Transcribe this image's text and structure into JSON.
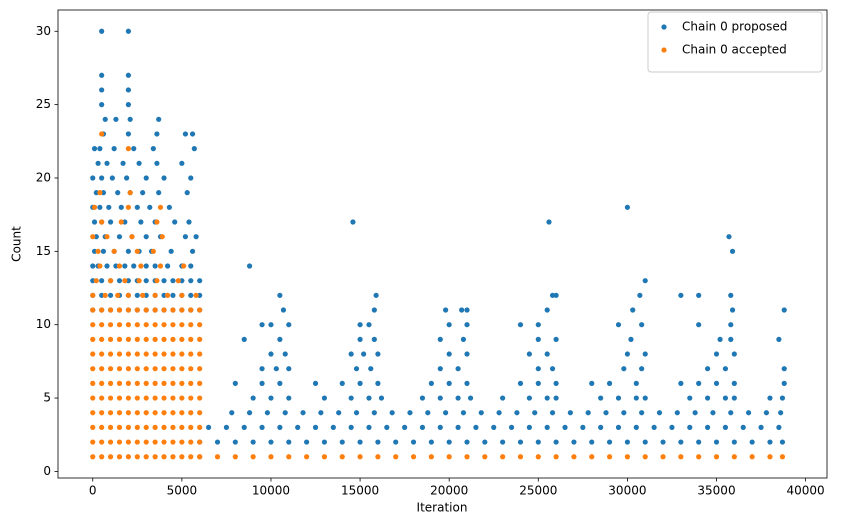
{
  "chart_data": {
    "type": "scatter",
    "xlabel": "Iteration",
    "ylabel": "Count",
    "legend": "upper right",
    "xlim": [
      -1950,
      41200
    ],
    "ylim": [
      -0.45,
      31.45
    ],
    "xticks": [
      0,
      5000,
      10000,
      15000,
      20000,
      25000,
      30000,
      35000,
      40000
    ],
    "yticks": [
      0,
      5,
      10,
      15,
      20,
      25,
      30
    ],
    "series": [
      {
        "name": "Chain 0 proposed",
        "color": "#1f77b4",
        "x": [
          0,
          500,
          1000,
          1500,
          2000,
          2500,
          3000,
          3500,
          4000,
          4500,
          5000,
          5500,
          6000,
          0,
          500,
          1000,
          1500,
          2000,
          2500,
          3000,
          3500,
          4000,
          4500,
          5000,
          5500,
          6000,
          0,
          500,
          1000,
          1500,
          2000,
          2500,
          3000,
          3500,
          4000,
          4500,
          5000,
          5500,
          6000,
          0,
          300,
          800,
          1300,
          1800,
          2300,
          3000,
          3500,
          4200,
          5000,
          5500,
          100,
          600,
          1200,
          2000,
          2600,
          3300,
          4400,
          5600,
          200,
          700,
          1500,
          2200,
          3000,
          3800,
          5200,
          5800,
          100,
          500,
          1000,
          1800,
          2700,
          3500,
          4600,
          5400,
          0,
          400,
          900,
          1600,
          2500,
          3200,
          4300,
          200,
          600,
          1400,
          2100,
          2800,
          3700,
          5300,
          0,
          500,
          1100,
          1900,
          3000,
          4000,
          5500,
          300,
          800,
          1700,
          2600,
          3600,
          5000,
          100,
          400,
          1200,
          2300,
          3400,
          5700,
          600,
          2000,
          3600,
          5200,
          5600,
          700,
          1300,
          2100,
          3700,
          500,
          2000,
          500,
          2000,
          500,
          2000,
          500,
          2000,
          6000,
          7000,
          8000,
          9000,
          10000,
          11000,
          12000,
          13000,
          14000,
          15000,
          16000,
          17000,
          18000,
          19000,
          20000,
          21000,
          22000,
          23000,
          24000,
          25000,
          26000,
          27000,
          28000,
          29000,
          30000,
          31000,
          32000,
          33000,
          34000,
          35000,
          36000,
          37000,
          38000,
          38700,
          6500,
          7500,
          8500,
          9500,
          10500,
          11500,
          12500,
          13500,
          14500,
          15500,
          16500,
          17500,
          18500,
          19500,
          20500,
          21500,
          22500,
          23500,
          24500,
          25500,
          26500,
          27500,
          28500,
          29500,
          30500,
          31500,
          32500,
          33500,
          34500,
          35500,
          36500,
          37500,
          38500,
          7800,
          8800,
          9800,
          10800,
          11800,
          12800,
          13800,
          14800,
          15800,
          16800,
          17800,
          18800,
          19800,
          20800,
          21800,
          22800,
          23800,
          24800,
          25800,
          26800,
          27800,
          28800,
          29800,
          30800,
          31800,
          32800,
          33800,
          34800,
          35800,
          36800,
          37800,
          38600,
          9000,
          10000,
          11000,
          13000,
          14500,
          15500,
          16200,
          18500,
          19500,
          20500,
          21200,
          23000,
          24500,
          25500,
          26000,
          28500,
          29500,
          30500,
          31000,
          33500,
          34500,
          35500,
          36000,
          38000,
          38700,
          8000,
          9500,
          10500,
          12500,
          14000,
          15000,
          16000,
          19000,
          20000,
          21000,
          24000,
          25000,
          26000,
          28000,
          29000,
          30500,
          33000,
          34000,
          35000,
          36000,
          38800,
          9500,
          10300,
          11000,
          14800,
          15600,
          19500,
          20500,
          25000,
          25800,
          29800,
          30800,
          34500,
          35500,
          38800,
          10000,
          10800,
          14500,
          15200,
          16000,
          20000,
          21000,
          24500,
          25500,
          30000,
          31000,
          35000,
          36000,
          8500,
          10500,
          15000,
          15800,
          19500,
          20800,
          25000,
          26000,
          30200,
          35200,
          35800,
          38500,
          9500,
          10000,
          11000,
          15000,
          15500,
          20000,
          21000,
          24000,
          25000,
          29500,
          30800,
          34000,
          35800,
          10700,
          15800,
          19800,
          20700,
          21000,
          25500,
          30300,
          35900,
          38800,
          10500,
          15900,
          25800,
          26000,
          30700,
          33000,
          34000,
          35800,
          31000,
          8800,
          35900,
          35700,
          14600,
          25600,
          30000
        ],
        "values": [
          11,
          11,
          11,
          11,
          11,
          11,
          11,
          11,
          11,
          11,
          11,
          11,
          11,
          12,
          12,
          12,
          12,
          12,
          12,
          12,
          12,
          12,
          12,
          12,
          12,
          12,
          13,
          13,
          13,
          13,
          13,
          13,
          13,
          13,
          13,
          13,
          13,
          13,
          13,
          14,
          14,
          14,
          14,
          14,
          14,
          14,
          14,
          14,
          14,
          14,
          15,
          15,
          15,
          15,
          15,
          15,
          15,
          15,
          16,
          16,
          16,
          16,
          16,
          16,
          16,
          16,
          17,
          17,
          17,
          17,
          17,
          17,
          17,
          17,
          18,
          18,
          18,
          18,
          18,
          18,
          18,
          19,
          19,
          19,
          19,
          19,
          19,
          19,
          20,
          20,
          20,
          20,
          20,
          20,
          20,
          21,
          21,
          21,
          21,
          21,
          21,
          22,
          22,
          22,
          22,
          22,
          22,
          23,
          23,
          23,
          23,
          23,
          24,
          24,
          24,
          24,
          25,
          25,
          26,
          26,
          27,
          27,
          30,
          30,
          2,
          2,
          2,
          2,
          2,
          2,
          2,
          2,
          2,
          2,
          2,
          2,
          2,
          2,
          2,
          2,
          2,
          2,
          2,
          2,
          2,
          2,
          2,
          2,
          2,
          2,
          2,
          2,
          2,
          2,
          2,
          2,
          2,
          2,
          3,
          3,
          3,
          3,
          3,
          3,
          3,
          3,
          3,
          3,
          3,
          3,
          3,
          3,
          3,
          3,
          3,
          3,
          3,
          3,
          3,
          3,
          3,
          3,
          3,
          3,
          3,
          3,
          3,
          3,
          3,
          3,
          3,
          4,
          4,
          4,
          4,
          4,
          4,
          4,
          4,
          4,
          4,
          4,
          4,
          4,
          4,
          4,
          4,
          4,
          4,
          4,
          4,
          4,
          4,
          4,
          4,
          4,
          4,
          4,
          4,
          4,
          4,
          4,
          4,
          5,
          5,
          5,
          5,
          5,
          5,
          5,
          5,
          5,
          5,
          5,
          5,
          5,
          5,
          5,
          5,
          5,
          5,
          5,
          5,
          5,
          5,
          5,
          5,
          5,
          6,
          6,
          6,
          6,
          6,
          6,
          6,
          6,
          6,
          6,
          6,
          6,
          6,
          6,
          6,
          6,
          6,
          6,
          6,
          6,
          6,
          7,
          7,
          7,
          7,
          7,
          7,
          7,
          7,
          7,
          7,
          7,
          7,
          7,
          7,
          8,
          8,
          8,
          8,
          8,
          8,
          8,
          8,
          8,
          8,
          8,
          8,
          8,
          9,
          9,
          9,
          9,
          9,
          9,
          9,
          9,
          9,
          9,
          9,
          9,
          10,
          10,
          10,
          10,
          10,
          10,
          10,
          10,
          10,
          10,
          10,
          10,
          10,
          11,
          11,
          11,
          11,
          11,
          11,
          11,
          11,
          11,
          12,
          12,
          12,
          12,
          12,
          12,
          12,
          12,
          13,
          14,
          15,
          16,
          17,
          17,
          18
        ]
      },
      {
        "name": "Chain 0 accepted",
        "color": "#ff7f0e",
        "x": [
          0,
          500,
          1000,
          1500,
          2000,
          2500,
          3000,
          3500,
          4000,
          4500,
          5000,
          5500,
          6000,
          0,
          500,
          1000,
          1500,
          2000,
          2500,
          3000,
          3500,
          4000,
          4500,
          5000,
          5500,
          6000,
          0,
          500,
          1000,
          1500,
          2000,
          2500,
          3000,
          3500,
          4000,
          4500,
          5000,
          5500,
          6000,
          0,
          500,
          1000,
          1500,
          2000,
          2500,
          3000,
          3500,
          4000,
          4500,
          5000,
          5500,
          6000,
          0,
          500,
          1000,
          1500,
          2000,
          2500,
          3000,
          3500,
          4000,
          4500,
          5000,
          5500,
          6000,
          0,
          500,
          1000,
          1500,
          2000,
          2500,
          3000,
          3500,
          4000,
          4500,
          5000,
          5500,
          6000,
          0,
          500,
          1000,
          1500,
          2000,
          2500,
          3000,
          3500,
          4000,
          4500,
          5000,
          5500,
          6000,
          0,
          500,
          1000,
          1500,
          2000,
          2500,
          3000,
          3500,
          4000,
          4500,
          5000,
          5500,
          6000,
          0,
          500,
          1000,
          1500,
          2000,
          2500,
          3000,
          3500,
          4000,
          4500,
          5000,
          5500,
          6000,
          0,
          500,
          1000,
          1500,
          2000,
          2500,
          3000,
          3500,
          4000,
          4500,
          5000,
          5500,
          6000,
          0,
          500,
          1000,
          1500,
          2000,
          2500,
          3000,
          3500,
          4000,
          4500,
          5000,
          5500,
          6000,
          0,
          700,
          1400,
          2000,
          2800,
          3500,
          4200,
          5000,
          5800,
          200,
          1000,
          1800,
          2600,
          3600,
          4800,
          400,
          1500,
          2700,
          3800,
          5100,
          300,
          1200,
          2500,
          3400,
          0,
          800,
          2200,
          3900,
          500,
          1600,
          3600,
          100,
          2000,
          3800,
          400,
          2100,
          2000,
          500,
          6000,
          7000,
          8000,
          9000,
          10000,
          11000,
          12000,
          13000,
          14000,
          15000,
          16000,
          17000,
          18000,
          19000,
          20000,
          21000,
          22000,
          23000,
          24000,
          25000,
          26000,
          27000,
          28000,
          29000,
          30000,
          31000,
          32000,
          33000,
          34000,
          35000,
          36000,
          37000,
          38000,
          38700
        ],
        "values": [
          1,
          1,
          1,
          1,
          1,
          1,
          1,
          1,
          1,
          1,
          1,
          1,
          1,
          2,
          2,
          2,
          2,
          2,
          2,
          2,
          2,
          2,
          2,
          2,
          2,
          2,
          3,
          3,
          3,
          3,
          3,
          3,
          3,
          3,
          3,
          3,
          3,
          3,
          3,
          4,
          4,
          4,
          4,
          4,
          4,
          4,
          4,
          4,
          4,
          4,
          4,
          4,
          5,
          5,
          5,
          5,
          5,
          5,
          5,
          5,
          5,
          5,
          5,
          5,
          5,
          6,
          6,
          6,
          6,
          6,
          6,
          6,
          6,
          6,
          6,
          6,
          6,
          6,
          7,
          7,
          7,
          7,
          7,
          7,
          7,
          7,
          7,
          7,
          7,
          7,
          7,
          8,
          8,
          8,
          8,
          8,
          8,
          8,
          8,
          8,
          8,
          8,
          8,
          8,
          9,
          9,
          9,
          9,
          9,
          9,
          9,
          9,
          9,
          9,
          9,
          9,
          9,
          10,
          10,
          10,
          10,
          10,
          10,
          10,
          10,
          10,
          10,
          10,
          10,
          10,
          11,
          11,
          11,
          11,
          11,
          11,
          11,
          11,
          11,
          11,
          11,
          11,
          11,
          12,
          12,
          12,
          12,
          12,
          12,
          12,
          12,
          12,
          13,
          13,
          13,
          13,
          13,
          13,
          14,
          14,
          14,
          14,
          14,
          15,
          15,
          15,
          15,
          16,
          16,
          16,
          16,
          17,
          17,
          17,
          18,
          18,
          18,
          19,
          19,
          22,
          23,
          1,
          1,
          1,
          1,
          1,
          1,
          1,
          1,
          1,
          1,
          1,
          1,
          1,
          1,
          1,
          1,
          1,
          1,
          1,
          1,
          1,
          1,
          1,
          1,
          1,
          1,
          1,
          1,
          1,
          1,
          1,
          1,
          1,
          1
        ]
      }
    ]
  }
}
